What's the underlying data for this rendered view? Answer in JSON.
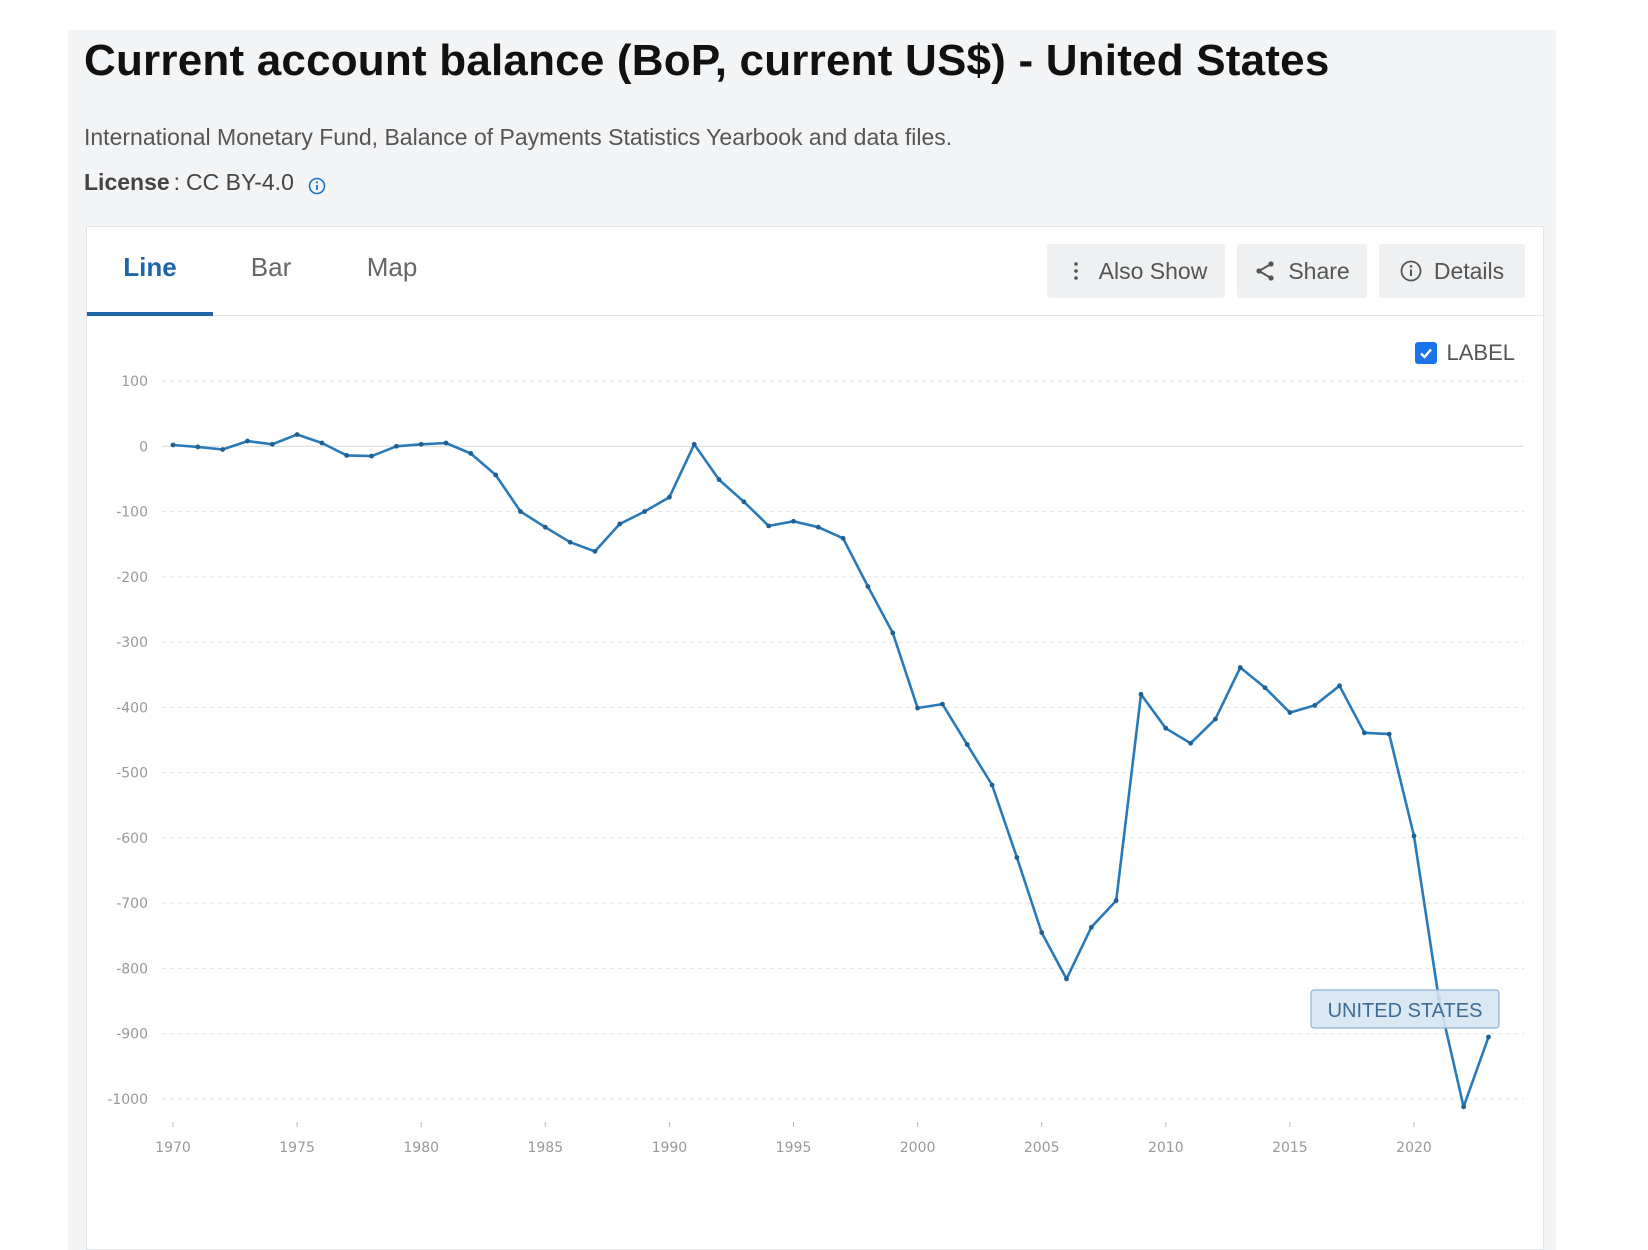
{
  "header": {
    "title": "Current account balance (BoP, current US$) - United States",
    "source": "International Monetary Fund, Balance of Payments Statistics Yearbook and data files.",
    "license_key": "License",
    "license_value": "CC BY-4.0"
  },
  "tabs": [
    {
      "label": "Line",
      "active": true
    },
    {
      "label": "Bar",
      "active": false
    },
    {
      "label": "Map",
      "active": false
    }
  ],
  "toolbar": {
    "also_show": "Also Show",
    "share": "Share",
    "details": "Details"
  },
  "label_toggle": {
    "label": "LABEL",
    "checked": true
  },
  "colors": {
    "accent": "#1f66a8",
    "line": "#2a7ab8",
    "checkbox": "#1a73e8",
    "series_label_bg": "#d6e6f3"
  },
  "chart_data": {
    "type": "line",
    "ylim": [
      -1000,
      100
    ],
    "yticks": [
      100,
      0,
      -100,
      -200,
      -300,
      -400,
      -500,
      -600,
      -700,
      -800,
      -900,
      -1000
    ],
    "xticks": [
      1970,
      1975,
      1980,
      1985,
      1990,
      1995,
      2000,
      2005,
      2010,
      2015,
      2020
    ],
    "grid": true,
    "series": [
      {
        "name": "UNITED STATES",
        "x": [
          1970,
          1971,
          1972,
          1973,
          1974,
          1975,
          1976,
          1977,
          1978,
          1979,
          1980,
          1981,
          1982,
          1983,
          1984,
          1985,
          1986,
          1987,
          1988,
          1989,
          1990,
          1991,
          1992,
          1993,
          1994,
          1995,
          1996,
          1997,
          1998,
          1999,
          2000,
          2001,
          2002,
          2003,
          2004,
          2005,
          2006,
          2007,
          2008,
          2009,
          2010,
          2011,
          2012,
          2013,
          2014,
          2015,
          2016,
          2017,
          2018,
          2019,
          2020,
          2021,
          2022,
          2023
        ],
        "values": [
          2,
          -1,
          -5,
          8,
          3,
          18,
          5,
          -14,
          -15,
          0,
          3,
          5,
          -11,
          -44,
          -100,
          -124,
          -147,
          -161,
          -119,
          -100,
          -78,
          3,
          -51,
          -85,
          -122,
          -115,
          -124,
          -141,
          -215,
          -286,
          -401,
          -395,
          -457,
          -519,
          -630,
          -745,
          -816,
          -737,
          -696,
          -380,
          -432,
          -455,
          -418,
          -339,
          -370,
          -408,
          -397,
          -367,
          -439,
          -441,
          -597,
          -846,
          -1012,
          -905
        ]
      }
    ]
  }
}
